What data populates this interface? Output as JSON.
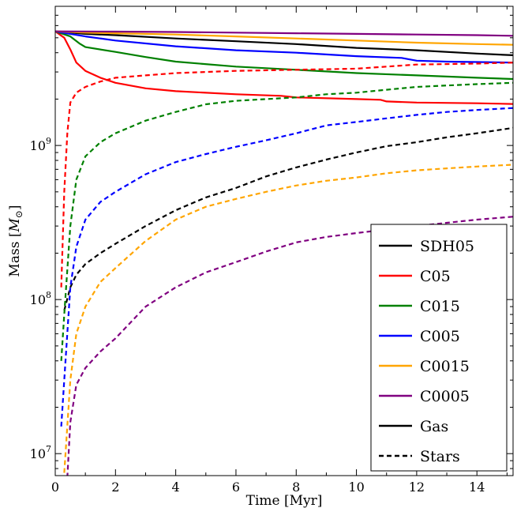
{
  "chart_data": {
    "type": "line",
    "xlabel": "Time [Myr]",
    "ylabel_main": "Mass [",
    "ylabel_sym": "M",
    "ylabel_sub": "⊙",
    "ylabel_end": "]",
    "xlim": [
      0,
      15.2
    ],
    "ylim": [
      7200000.0,
      8000000000.0
    ],
    "yscale": "log",
    "x_ticks": [
      0,
      2,
      4,
      6,
      8,
      10,
      12,
      14
    ],
    "x_tick_labels": [
      "0",
      "2",
      "4",
      "6",
      "8",
      "10",
      "12",
      "14"
    ],
    "y_ticks": [
      10000000,
      100000000,
      1000000000
    ],
    "y_tick_labels": [
      {
        "base": "10",
        "exp": "7"
      },
      {
        "base": "10",
        "exp": "8"
      },
      {
        "base": "10",
        "exp": "9"
      }
    ],
    "legend_position": "lower-right",
    "legend": [
      {
        "label": "SDH05",
        "color": "#000000",
        "dash": false
      },
      {
        "label": "C05",
        "color": "#ff0000",
        "dash": false
      },
      {
        "label": "C015",
        "color": "#008000",
        "dash": false
      },
      {
        "label": "C005",
        "color": "#0000ff",
        "dash": false
      },
      {
        "label": "C0015",
        "color": "#ffa500",
        "dash": false
      },
      {
        "label": "C0005",
        "color": "#800080",
        "dash": false
      },
      {
        "label": "Gas",
        "color": "#000000",
        "dash": false
      },
      {
        "label": "Stars",
        "color": "#000000",
        "dash": true
      }
    ],
    "series": [
      {
        "name": "SDH05",
        "component": "Gas",
        "color": "#000000",
        "dash": false,
        "x": [
          0,
          0.5,
          1,
          2,
          4,
          6,
          8,
          10,
          12,
          14,
          15.2
        ],
        "y": [
          5500000000.0,
          5400000000.0,
          5300000000.0,
          5200000000.0,
          4950000000.0,
          4750000000.0,
          4550000000.0,
          4300000000.0,
          4150000000.0,
          3950000000.0,
          3850000000.0
        ]
      },
      {
        "name": "C05",
        "component": "Gas",
        "color": "#ff0000",
        "dash": false,
        "x": [
          0,
          0.3,
          0.5,
          0.7,
          1,
          1.5,
          2,
          3,
          4,
          6,
          7.5,
          8,
          10,
          10.8,
          11,
          12,
          14,
          15.2
        ],
        "y": [
          5500000000.0,
          5000000000.0,
          4200000000.0,
          3450000000.0,
          3050000000.0,
          2750000000.0,
          2550000000.0,
          2350000000.0,
          2250000000.0,
          2150000000.0,
          2100000000.0,
          2050000000.0,
          2000000000.0,
          1980000000.0,
          1930000000.0,
          1900000000.0,
          1880000000.0,
          1860000000.0
        ]
      },
      {
        "name": "C015",
        "component": "Gas",
        "color": "#008000",
        "dash": false,
        "x": [
          0,
          0.5,
          0.8,
          1,
          2,
          3,
          4,
          6,
          8,
          10,
          12,
          14,
          15.2
        ],
        "y": [
          5500000000.0,
          5100000000.0,
          4600000000.0,
          4350000000.0,
          4050000000.0,
          3750000000.0,
          3500000000.0,
          3250000000.0,
          3100000000.0,
          2950000000.0,
          2850000000.0,
          2750000000.0,
          2700000000.0
        ]
      },
      {
        "name": "C005",
        "component": "Gas",
        "color": "#0000ff",
        "dash": false,
        "x": [
          0,
          0.5,
          1,
          2,
          4,
          6,
          8,
          10,
          11.5,
          12,
          13,
          14,
          15.2
        ],
        "y": [
          5500000000.0,
          5300000000.0,
          5100000000.0,
          4800000000.0,
          4400000000.0,
          4150000000.0,
          4000000000.0,
          3800000000.0,
          3700000000.0,
          3550000000.0,
          3500000000.0,
          3480000000.0,
          3450000000.0
        ]
      },
      {
        "name": "C0015",
        "component": "Gas",
        "color": "#ffa500",
        "dash": false,
        "x": [
          0,
          1,
          2,
          4,
          6,
          8,
          10,
          12,
          14,
          15.2
        ],
        "y": [
          5500000000.0,
          5400000000.0,
          5350000000.0,
          5250000000.0,
          5100000000.0,
          4950000000.0,
          4800000000.0,
          4650000000.0,
          4550000000.0,
          4500000000.0
        ]
      },
      {
        "name": "C0005",
        "component": "Gas",
        "color": "#800080",
        "dash": false,
        "x": [
          0,
          2,
          4,
          6,
          8,
          10,
          12,
          14,
          15.2
        ],
        "y": [
          5500000000.0,
          5480000000.0,
          5450000000.0,
          5400000000.0,
          5350000000.0,
          5300000000.0,
          5250000000.0,
          5200000000.0,
          5150000000.0
        ]
      },
      {
        "name": "SDH05",
        "component": "Stars",
        "color": "#000000",
        "dash": true,
        "x": [
          0.3,
          0.5,
          0.7,
          1,
          1.5,
          2,
          3,
          4,
          5,
          6,
          7,
          8,
          9,
          10,
          11,
          12,
          13,
          14,
          15.2
        ],
        "y": [
          85000000.0,
          120000000.0,
          145000000.0,
          170000000.0,
          200000000.0,
          230000000.0,
          300000000.0,
          380000000.0,
          460000000.0,
          530000000.0,
          630000000.0,
          720000000.0,
          810000000.0,
          900000000.0,
          990000000.0,
          1050000000.0,
          1130000000.0,
          1200000000.0,
          1300000000.0
        ]
      },
      {
        "name": "C05",
        "component": "Stars",
        "color": "#ff0000",
        "dash": true,
        "x": [
          0.2,
          0.3,
          0.4,
          0.5,
          0.7,
          1,
          1.5,
          2,
          3,
          4,
          6,
          8,
          10,
          11,
          12,
          14,
          15.2
        ],
        "y": [
          120000000.0,
          500000000.0,
          1200000000.0,
          1900000000.0,
          2200000000.0,
          2400000000.0,
          2600000000.0,
          2750000000.0,
          2850000000.0,
          2950000000.0,
          3050000000.0,
          3100000000.0,
          3150000000.0,
          3250000000.0,
          3350000000.0,
          3400000000.0,
          3450000000.0
        ]
      },
      {
        "name": "C015",
        "component": "Stars",
        "color": "#008000",
        "dash": true,
        "x": [
          0.2,
          0.3,
          0.5,
          0.7,
          1,
          1.5,
          2,
          3,
          4,
          5,
          6,
          8,
          9,
          10,
          11,
          12,
          13,
          14,
          15.2
        ],
        "y": [
          40000000.0,
          80000000.0,
          300000000.0,
          600000000.0,
          850000000.0,
          1050000000.0,
          1200000000.0,
          1450000000.0,
          1650000000.0,
          1850000000.0,
          1950000000.0,
          2050000000.0,
          2150000000.0,
          2200000000.0,
          2300000000.0,
          2400000000.0,
          2450000000.0,
          2500000000.0,
          2550000000.0
        ]
      },
      {
        "name": "C005",
        "component": "Stars",
        "color": "#0000ff",
        "dash": true,
        "x": [
          0.2,
          0.3,
          0.5,
          0.7,
          1,
          1.5,
          2,
          3,
          4,
          5,
          6,
          7,
          8,
          9,
          10,
          11,
          12,
          13,
          14,
          15.2
        ],
        "y": [
          15000000.0,
          30000000.0,
          120000000.0,
          220000000.0,
          330000000.0,
          430000000.0,
          500000000.0,
          650000000.0,
          780000000.0,
          880000000.0,
          980000000.0,
          1080000000.0,
          1200000000.0,
          1350000000.0,
          1420000000.0,
          1500000000.0,
          1580000000.0,
          1650000000.0,
          1700000000.0,
          1750000000.0
        ]
      },
      {
        "name": "C0015",
        "component": "Stars",
        "color": "#ffa500",
        "dash": true,
        "x": [
          0.3,
          0.5,
          0.7,
          1,
          1.5,
          2,
          3,
          4,
          5,
          6,
          7,
          8,
          9,
          10,
          11,
          12,
          13,
          14,
          15.2
        ],
        "y": [
          7500000.0,
          30000000.0,
          60000000.0,
          90000000.0,
          130000000.0,
          160000000.0,
          240000000.0,
          330000000.0,
          400000000.0,
          450000000.0,
          500000000.0,
          550000000.0,
          590000000.0,
          620000000.0,
          660000000.0,
          690000000.0,
          710000000.0,
          730000000.0,
          750000000.0
        ]
      },
      {
        "name": "C0005",
        "component": "Stars",
        "color": "#800080",
        "dash": true,
        "x": [
          0.4,
          0.5,
          0.7,
          1,
          1.5,
          2,
          3,
          4,
          5,
          6,
          7,
          8,
          9,
          10,
          11,
          12,
          13,
          14,
          15.2
        ],
        "y": [
          7000000.0,
          16000000.0,
          28000000.0,
          36000000.0,
          46000000.0,
          56000000.0,
          90000000.0,
          120000000.0,
          150000000.0,
          175000000.0,
          205000000.0,
          235000000.0,
          255000000.0,
          270000000.0,
          285000000.0,
          300000000.0,
          315000000.0,
          330000000.0,
          345000000.0
        ]
      }
    ]
  }
}
